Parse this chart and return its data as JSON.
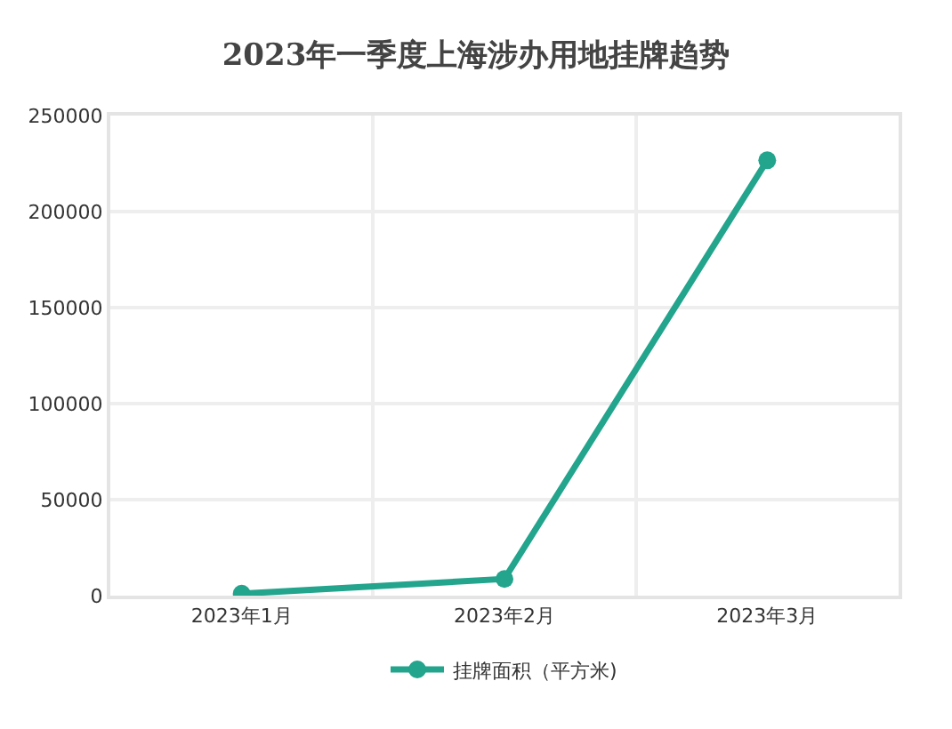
{
  "chart_data": {
    "type": "line",
    "title": "2023年一季度上海涉办用地挂牌趋势",
    "categories": [
      "2023年1月",
      "2023年2月",
      "2023年3月"
    ],
    "series": [
      {
        "name": "挂牌面积（平方米)",
        "color": "#23a48c",
        "values": [
          1000,
          8700,
          226700
        ]
      }
    ],
    "ylim": [
      0,
      250000
    ],
    "yticks": [
      0,
      50000,
      100000,
      150000,
      200000,
      250000
    ],
    "grid": true,
    "legend": "bottom",
    "marker": "circle",
    "line_style": "solid"
  }
}
